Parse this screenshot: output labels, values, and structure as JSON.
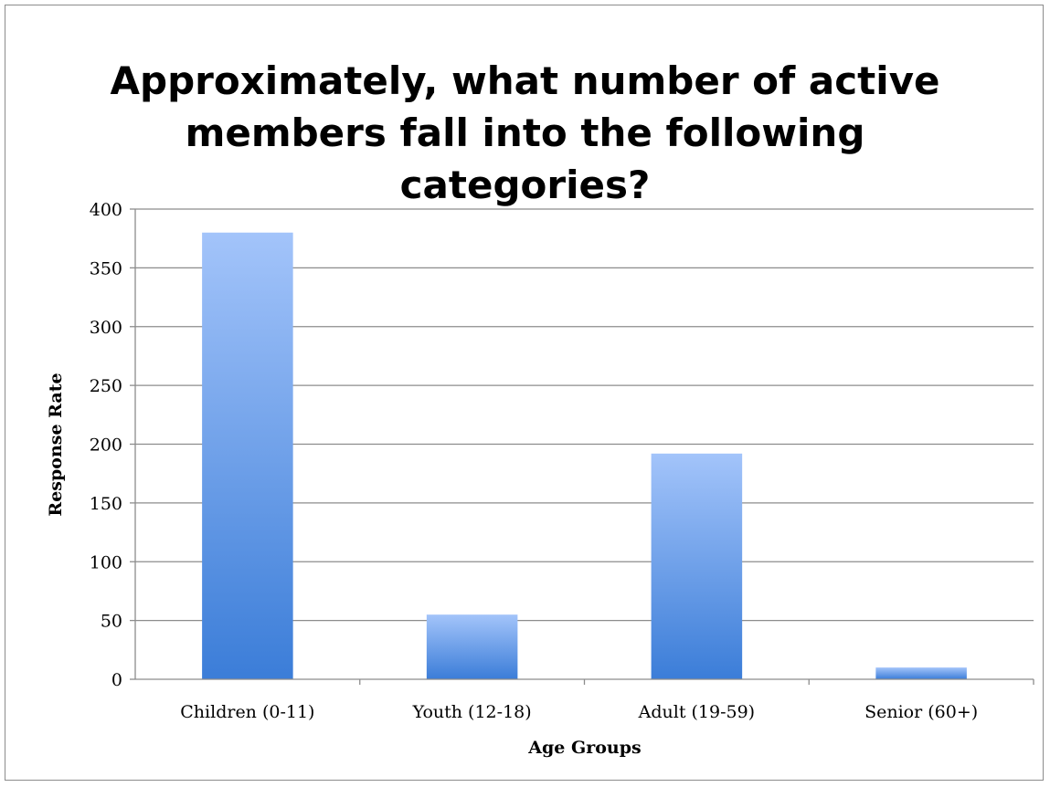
{
  "chart_data": {
    "type": "bar",
    "title_lines": [
      "Approximately, what number of active",
      "members fall into the following",
      "categories?"
    ],
    "categories": [
      "Children (0-11)",
      "Youth (12-18)",
      "Adult (19-59)",
      "Senior (60+)"
    ],
    "values": [
      380,
      55,
      192,
      10
    ],
    "xlabel": "Age Groups",
    "ylabel": "Response Rate",
    "ylim": [
      0,
      400
    ],
    "yticks": [
      0,
      50,
      100,
      150,
      200,
      250,
      300,
      350,
      400
    ],
    "grid": true,
    "legend": "none",
    "colors": {
      "bar_top": "#a3c4fa",
      "bar_bottom": "#3b7dd8",
      "grid": "#8c8c8c",
      "axis": "#8c8c8c",
      "frame": "#8c8c8c"
    }
  }
}
